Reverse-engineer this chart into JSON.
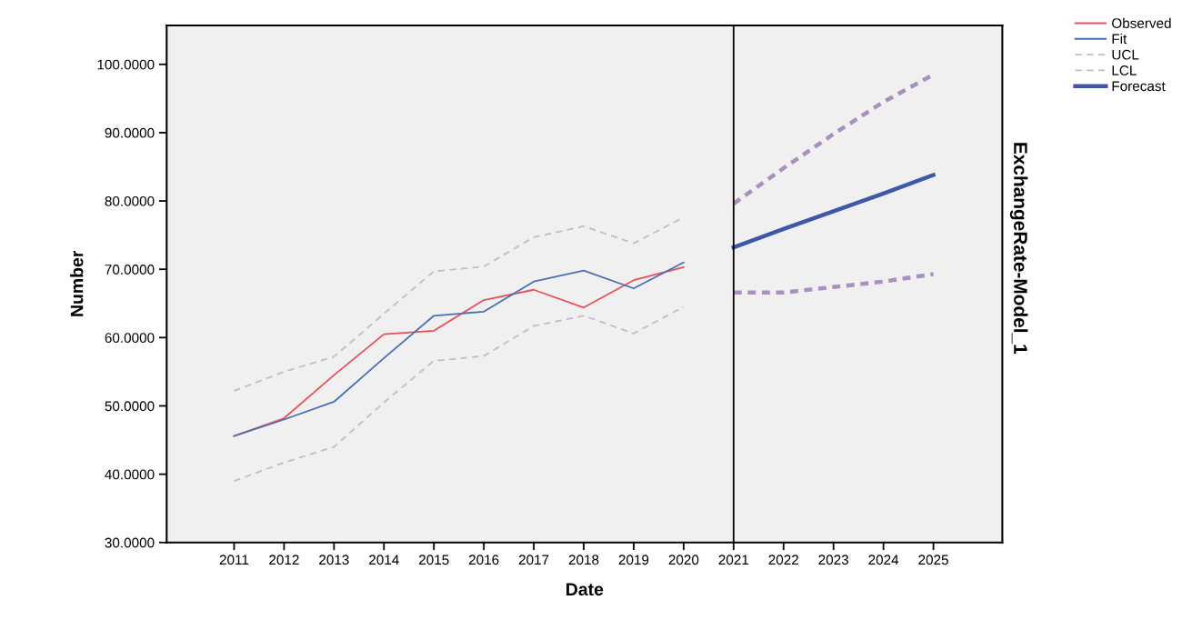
{
  "chart_data": {
    "type": "line",
    "xlabel": "Date",
    "ylabel": "Number",
    "categories": [
      "2011",
      "2012",
      "2013",
      "2014",
      "2015",
      "2016",
      "2017",
      "2018",
      "2019",
      "2020",
      "2021",
      "2022",
      "2023",
      "2024",
      "2025"
    ],
    "series": [
      {
        "name": "Observed",
        "color": "#e8515a",
        "line_style": "solid",
        "values": [
          45.6,
          48.2,
          54.5,
          60.5,
          61.0,
          65.5,
          67.0,
          64.4,
          68.4,
          70.3,
          null,
          null,
          null,
          null,
          null
        ]
      },
      {
        "name": "Fit",
        "color": "#4a6fb5",
        "line_style": "solid",
        "values": [
          45.6,
          48.0,
          50.6,
          57.0,
          63.2,
          63.8,
          68.2,
          69.8,
          67.2,
          71.0,
          null,
          null,
          null,
          null,
          null
        ]
      },
      {
        "name": "UCL",
        "color": "#c8b8d0",
        "line_style": "dashed",
        "values": [
          52.2,
          55.0,
          57.2,
          63.5,
          69.7,
          70.4,
          74.7,
          76.3,
          73.8,
          77.6,
          null,
          null,
          null,
          null,
          null
        ]
      },
      {
        "name": "LCL",
        "color": "#c8b8d0",
        "line_style": "dashed",
        "values": [
          39.0,
          41.7,
          44.0,
          50.5,
          56.6,
          57.3,
          61.7,
          63.2,
          60.6,
          64.5,
          null,
          null,
          null,
          null,
          null
        ]
      },
      {
        "name": "Forecast",
        "color": "#3f57a8",
        "line_style": "solid",
        "values": [
          null,
          null,
          null,
          null,
          null,
          null,
          null,
          null,
          null,
          null,
          73.2,
          75.9,
          78.5,
          81.1,
          83.8
        ]
      },
      {
        "color": "#a990c0",
        "line_style": "dotted",
        "values": [
          null,
          null,
          null,
          null,
          null,
          null,
          null,
          null,
          null,
          null,
          79.6,
          84.8,
          89.8,
          94.5,
          98.5
        ]
      },
      {
        "color": "#a990c0",
        "line_style": "dotted",
        "values": [
          null,
          null,
          null,
          null,
          null,
          null,
          null,
          null,
          null,
          null,
          66.6,
          66.6,
          67.4,
          68.2,
          69.3
        ]
      }
    ],
    "ylim": [
      30,
      105.7
    ],
    "yticks": [
      {
        "value": 30,
        "label": "30.0000"
      },
      {
        "value": 40,
        "label": "40.0000"
      },
      {
        "value": 50,
        "label": "50.0000"
      },
      {
        "value": 60,
        "label": "60.0000"
      },
      {
        "value": 70,
        "label": "70.0000"
      },
      {
        "value": 80,
        "label": "80.0000"
      },
      {
        "value": 90,
        "label": "90.0000"
      },
      {
        "value": 100,
        "label": "100.0000"
      }
    ],
    "ref_lines": [
      {
        "axis": "x",
        "value": "2021",
        "color": "#000000",
        "line_style": "solid"
      }
    ],
    "annotations": [
      "ExchangeRate-Model_1"
    ],
    "grid": false,
    "legend": "top right",
    "marker": "none"
  }
}
